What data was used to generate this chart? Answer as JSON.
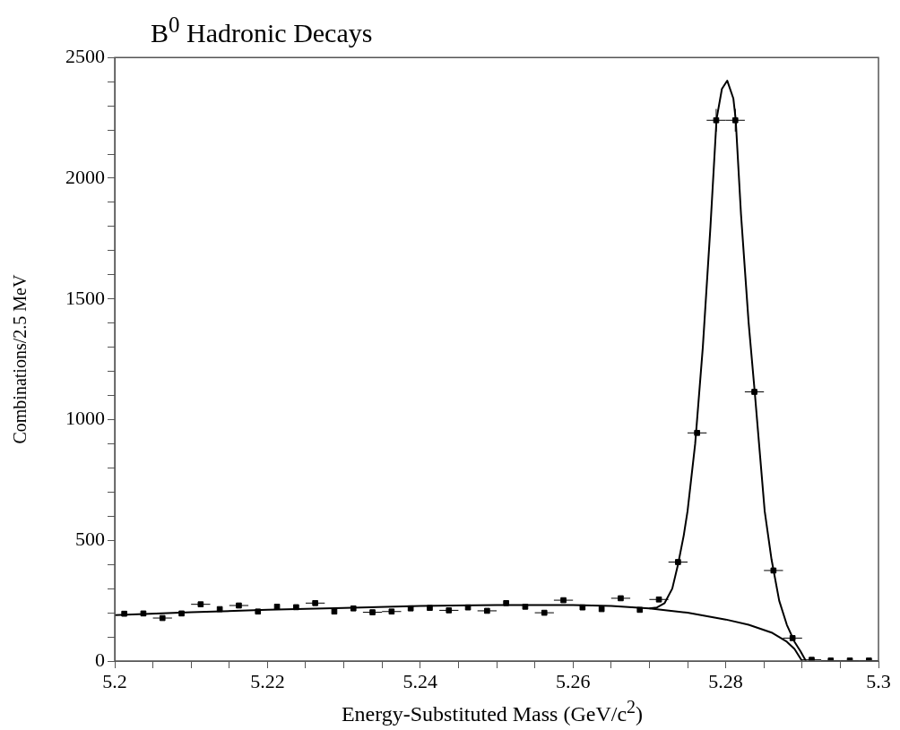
{
  "chart_data": {
    "type": "scatter",
    "title": "B$^{0}$ Hadronic Decays",
    "xlabel": "Energy-Substituted Mass (GeV/c$^{2}$)",
    "ylabel": "Combinations/2.5 MeV",
    "xlim": [
      5.2,
      5.3
    ],
    "ylim": [
      0,
      2500
    ],
    "xticks": [
      5.2,
      {
        "value": 5.205,
        "label": null
      },
      {
        "value": 5.21,
        "label": null
      },
      {
        "value": 5.215,
        "label": null
      },
      5.22,
      {
        "value": 5.225,
        "label": null
      },
      {
        "value": 5.23,
        "label": null
      },
      {
        "value": 5.235,
        "label": null
      },
      5.24,
      {
        "value": 5.245,
        "label": null
      },
      {
        "value": 5.25,
        "label": null
      },
      {
        "value": 5.255,
        "label": null
      },
      5.26,
      {
        "value": 5.265,
        "label": null
      },
      {
        "value": 5.27,
        "label": null
      },
      {
        "value": 5.275,
        "label": null
      },
      5.28,
      {
        "value": 5.285,
        "label": null
      },
      {
        "value": 5.29,
        "label": null
      },
      {
        "value": 5.295,
        "label": null
      },
      5.3
    ],
    "yticks": [
      0,
      {
        "value": 100,
        "label": null
      },
      {
        "value": 200,
        "label": null
      },
      {
        "value": 300,
        "label": null
      },
      {
        "value": 400,
        "label": null
      },
      500,
      {
        "value": 600,
        "label": null
      },
      {
        "value": 700,
        "label": null
      },
      {
        "value": 800,
        "label": null
      },
      {
        "value": 900,
        "label": null
      },
      1000,
      {
        "value": 1100,
        "label": null
      },
      {
        "value": 1200,
        "label": null
      },
      {
        "value": 1300,
        "label": null
      },
      {
        "value": 1400,
        "label": null
      },
      1500,
      {
        "value": 1600,
        "label": null
      },
      {
        "value": 1700,
        "label": null
      },
      {
        "value": 1800,
        "label": null
      },
      {
        "value": 1900,
        "label": null
      },
      2000,
      {
        "value": 2100,
        "label": null
      },
      {
        "value": 2200,
        "label": null
      },
      {
        "value": 2300,
        "label": null
      },
      {
        "value": 2400,
        "label": null
      },
      2500
    ],
    "grid": false,
    "legend": false,
    "series": [
      {
        "marker": "square",
        "color": "#000000",
        "x": [
          5.20125,
          5.20375,
          5.20625,
          5.20875,
          5.21125,
          5.21375,
          5.21625,
          5.21875,
          5.22125,
          5.22375,
          5.22625,
          5.22875,
          5.23125,
          5.23375,
          5.23625,
          5.23875,
          5.24125,
          5.24375,
          5.24625,
          5.24875,
          5.25125,
          5.25375,
          5.25625,
          5.25875,
          5.26125,
          5.26375,
          5.26625,
          5.26875,
          5.27125,
          5.27375,
          5.27625,
          5.27875,
          5.28125,
          5.28375,
          5.28625,
          5.28875,
          5.29125,
          5.29375,
          5.29625,
          5.29875
        ],
        "values": [
          196,
          197,
          178,
          197,
          235,
          215,
          230,
          205,
          225,
          223,
          240,
          205,
          218,
          202,
          205,
          218,
          220,
          210,
          222,
          208,
          240,
          225,
          200,
          252,
          222,
          215,
          260,
          212,
          255,
          410,
          945,
          2240,
          2240,
          1115,
          375,
          95,
          5,
          2,
          2,
          2
        ],
        "xerrors": [
          null,
          null,
          0.00125,
          null,
          0.00125,
          null,
          0.00125,
          null,
          null,
          null,
          0.00125,
          null,
          null,
          0.00125,
          0.00125,
          null,
          null,
          0.00125,
          null,
          0.00125,
          null,
          null,
          0.00125,
          0.00125,
          null,
          null,
          0.00125,
          null,
          0.00125,
          0.00125,
          0.00125,
          0.00125,
          0.00125,
          0.00125,
          0.00125,
          0.00125,
          0.00125,
          0.00125,
          0.00125,
          0.00125
        ],
        "errors": [
          null,
          null,
          null,
          null,
          null,
          null,
          null,
          null,
          null,
          null,
          null,
          null,
          null,
          null,
          null,
          null,
          null,
          null,
          null,
          null,
          null,
          null,
          null,
          null,
          null,
          null,
          null,
          null,
          null,
          null,
          null,
          47,
          47,
          null,
          null,
          null,
          null,
          null,
          null,
          null
        ]
      },
      {
        "type": "line",
        "marker": "none",
        "color": "#000000",
        "x": [
          5.27,
          5.271,
          5.272,
          5.273,
          5.27375,
          5.2745,
          5.275,
          5.276,
          5.277,
          5.278,
          5.2788,
          5.2795,
          5.2802,
          5.281,
          5.2813,
          5.282,
          5.283,
          5.2838,
          5.2851,
          5.286,
          5.287,
          5.288,
          5.289,
          5.2898,
          5.2905
        ],
        "values": [
          218,
          222,
          240,
          300,
          400,
          520,
          621,
          900,
          1300,
          1800,
          2245,
          2370,
          2404,
          2330,
          2245,
          1850,
          1400,
          1113,
          621,
          420,
          250,
          150,
          80,
          40,
          0
        ]
      },
      {
        "type": "line",
        "marker": "none",
        "color": "#000000",
        "x": [
          5.2,
          5.21,
          5.22,
          5.23,
          5.24,
          5.25,
          5.26,
          5.265,
          5.27,
          5.275,
          5.28,
          5.283,
          5.286,
          5.288,
          5.289,
          5.29
        ],
        "values": [
          190,
          202,
          212,
          220,
          228,
          232,
          232,
          228,
          218,
          200,
          172,
          150,
          118,
          80,
          50,
          0
        ]
      }
    ]
  }
}
